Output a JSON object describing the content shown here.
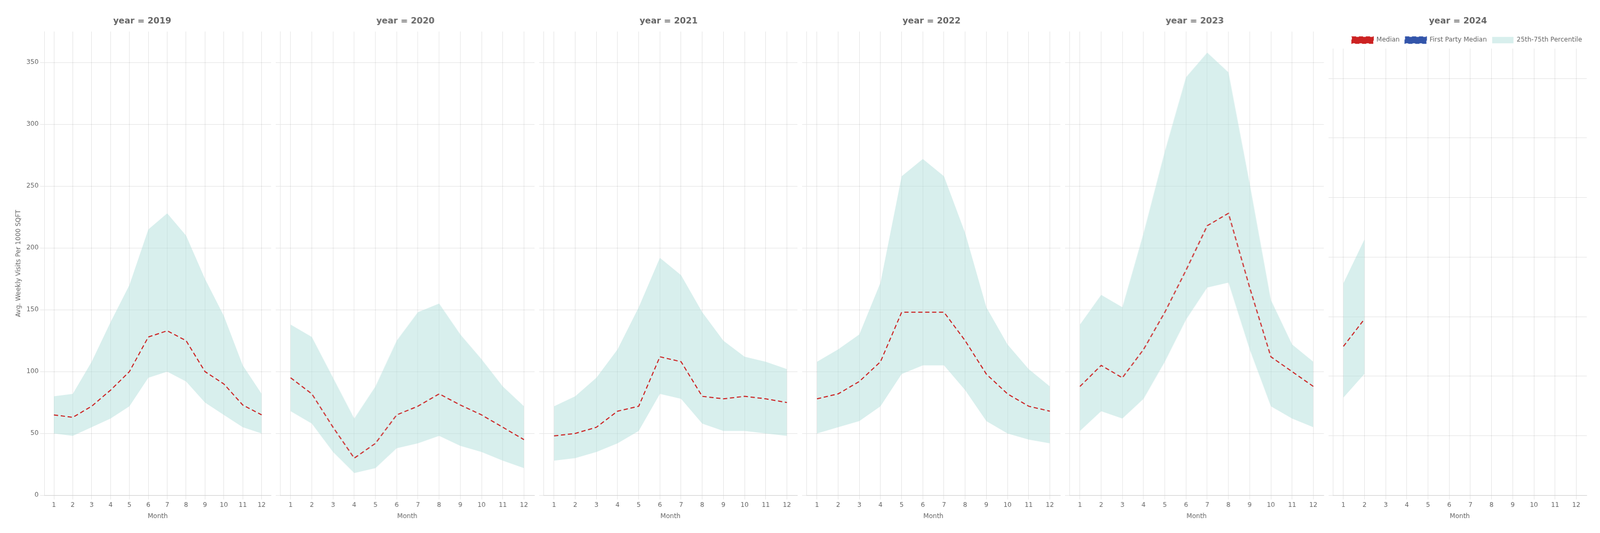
{
  "chart_data": [
    {
      "type": "line",
      "title": "year = 2019",
      "xlabel": "Month",
      "ylabel": "Avg. Weekly Visits Per 1000 SQFT",
      "x": [
        1,
        2,
        3,
        4,
        5,
        6,
        7,
        8,
        9,
        10,
        11,
        12
      ],
      "series": [
        {
          "name": "Median",
          "color": "#cc2222",
          "line_style": "dashed",
          "values": [
            65,
            63,
            72,
            85,
            100,
            128,
            133,
            125,
            100,
            90,
            73,
            65
          ]
        },
        {
          "name": "25th-75th Percentile",
          "type": "area",
          "color": "#b2dfdb",
          "lower": [
            50,
            48,
            55,
            62,
            72,
            95,
            100,
            92,
            75,
            65,
            55,
            50
          ],
          "upper": [
            80,
            82,
            108,
            140,
            170,
            215,
            228,
            210,
            175,
            145,
            105,
            82
          ]
        }
      ],
      "xlim": [
        0.5,
        12.5
      ],
      "xticks": [
        1,
        2,
        3,
        4,
        5,
        6,
        7,
        8,
        9,
        10,
        11,
        12
      ],
      "ylim": [
        0,
        375
      ],
      "yticks": [
        0,
        50,
        100,
        150,
        200,
        250,
        300,
        350
      ],
      "grid": true
    },
    {
      "type": "line",
      "title": "year = 2020",
      "xlabel": "Month",
      "x": [
        1,
        2,
        3,
        4,
        5,
        6,
        7,
        8,
        9,
        10,
        11,
        12
      ],
      "series": [
        {
          "name": "Median",
          "color": "#cc2222",
          "line_style": "dashed",
          "values": [
            95,
            82,
            55,
            30,
            42,
            65,
            72,
            82,
            73,
            65,
            55,
            45
          ]
        },
        {
          "name": "25th-75th Percentile",
          "type": "area",
          "color": "#b2dfdb",
          "lower": [
            68,
            58,
            35,
            18,
            22,
            38,
            42,
            48,
            40,
            35,
            28,
            22
          ],
          "upper": [
            138,
            128,
            95,
            62,
            88,
            125,
            148,
            155,
            130,
            110,
            88,
            72
          ]
        }
      ],
      "xlim": [
        0.5,
        12.5
      ],
      "xticks": [
        1,
        2,
        3,
        4,
        5,
        6,
        7,
        8,
        9,
        10,
        11,
        12
      ],
      "ylim": [
        0,
        375
      ],
      "yticks": [
        0,
        50,
        100,
        150,
        200,
        250,
        300,
        350
      ],
      "grid": true,
      "tick_labels": "x"
    },
    {
      "type": "line",
      "title": "year = 2021",
      "xlabel": "Month",
      "x": [
        1,
        2,
        3,
        4,
        5,
        6,
        7,
        8,
        9,
        10,
        11,
        12
      ],
      "series": [
        {
          "name": "Median",
          "color": "#cc2222",
          "line_style": "dashed",
          "values": [
            48,
            50,
            55,
            68,
            72,
            112,
            108,
            80,
            78,
            80,
            78,
            75
          ]
        },
        {
          "name": "25th-75th Percentile",
          "type": "area",
          "color": "#b2dfdb",
          "lower": [
            28,
            30,
            35,
            42,
            52,
            82,
            78,
            58,
            52,
            52,
            50,
            48
          ],
          "upper": [
            72,
            80,
            95,
            118,
            152,
            192,
            178,
            148,
            125,
            112,
            108,
            102
          ]
        }
      ],
      "xlim": [
        0.5,
        12.5
      ],
      "xticks": [
        1,
        2,
        3,
        4,
        5,
        6,
        7,
        8,
        9,
        10,
        11,
        12
      ],
      "ylim": [
        0,
        375
      ],
      "yticks": [
        0,
        50,
        100,
        150,
        200,
        250,
        300,
        350
      ],
      "grid": true,
      "tick_labels": "x"
    },
    {
      "type": "line",
      "title": "year = 2022",
      "xlabel": "Month",
      "x": [
        1,
        2,
        3,
        4,
        5,
        6,
        7,
        8,
        9,
        10,
        11,
        12
      ],
      "series": [
        {
          "name": "Median",
          "color": "#cc2222",
          "line_style": "dashed",
          "values": [
            78,
            82,
            92,
            108,
            148,
            148,
            148,
            125,
            98,
            82,
            72,
            68
          ]
        },
        {
          "name": "25th-75th Percentile",
          "type": "area",
          "color": "#b2dfdb",
          "lower": [
            50,
            55,
            60,
            72,
            98,
            105,
            105,
            85,
            60,
            50,
            45,
            42
          ],
          "upper": [
            108,
            118,
            130,
            172,
            258,
            272,
            258,
            212,
            152,
            122,
            102,
            88
          ]
        }
      ],
      "xlim": [
        0.5,
        12.5
      ],
      "xticks": [
        1,
        2,
        3,
        4,
        5,
        6,
        7,
        8,
        9,
        10,
        11,
        12
      ],
      "ylim": [
        0,
        375
      ],
      "yticks": [
        0,
        50,
        100,
        150,
        200,
        250,
        300,
        350
      ],
      "grid": true,
      "tick_labels": "x"
    },
    {
      "type": "line",
      "title": "year = 2023",
      "xlabel": "Month",
      "x": [
        1,
        2,
        3,
        4,
        5,
        6,
        7,
        8,
        9,
        10,
        11,
        12
      ],
      "series": [
        {
          "name": "Median",
          "color": "#cc2222",
          "line_style": "dashed",
          "values": [
            88,
            105,
            95,
            118,
            148,
            182,
            218,
            228,
            168,
            112,
            100,
            88
          ]
        },
        {
          "name": "25th-75th Percentile",
          "type": "area",
          "color": "#b2dfdb",
          "lower": [
            52,
            68,
            62,
            78,
            108,
            142,
            168,
            172,
            118,
            72,
            62,
            55
          ],
          "upper": [
            138,
            162,
            152,
            212,
            278,
            338,
            358,
            342,
            252,
            158,
            122,
            108
          ]
        }
      ],
      "xlim": [
        0.5,
        12.5
      ],
      "xticks": [
        1,
        2,
        3,
        4,
        5,
        6,
        7,
        8,
        9,
        10,
        11,
        12
      ],
      "ylim": [
        0,
        375
      ],
      "yticks": [
        0,
        50,
        100,
        150,
        200,
        250,
        300,
        350
      ],
      "grid": true,
      "tick_labels": "x"
    },
    {
      "type": "line",
      "title": "year = 2024",
      "xlabel": "Month",
      "x": [
        1,
        2
      ],
      "series": [
        {
          "name": "Median",
          "color": "#cc2222",
          "line_style": "dashed",
          "values": [
            125,
            148
          ]
        },
        {
          "name": "First Party Median",
          "color": "#3355aa",
          "line_style": "dashed",
          "values": [
            null,
            null
          ]
        },
        {
          "name": "25th-75th Percentile",
          "type": "area",
          "color": "#b2dfdb",
          "lower": [
            82,
            102
          ],
          "upper": [
            178,
            215
          ]
        }
      ],
      "xlim": [
        0.5,
        12.5
      ],
      "xticks": [
        1,
        2,
        3,
        4,
        5,
        6,
        7,
        8,
        9,
        10,
        11,
        12
      ],
      "ylim": [
        0,
        375
      ],
      "yticks": [
        0,
        50,
        100,
        150,
        200,
        250,
        300,
        350
      ],
      "grid": true,
      "tick_labels": "x",
      "legend": "upper right"
    }
  ]
}
